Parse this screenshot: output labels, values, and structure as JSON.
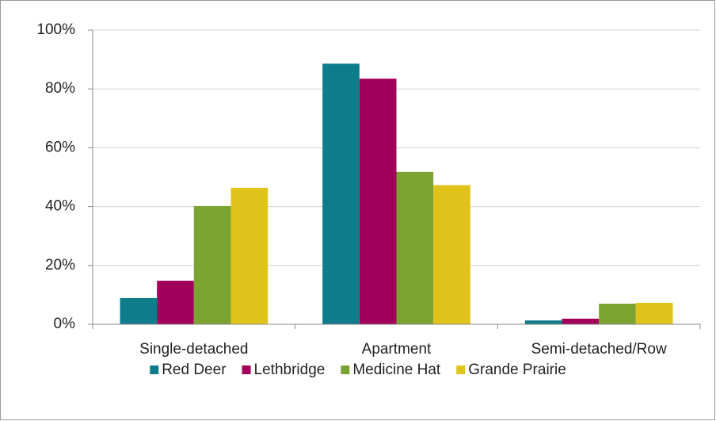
{
  "chart_data": {
    "type": "bar",
    "categories": [
      "Single-detached",
      "Apartment",
      "Semi-detached/Row"
    ],
    "series": [
      {
        "name": "Red Deer",
        "color": "#0e7c8b",
        "values": [
          8.9,
          88.6,
          1.3
        ]
      },
      {
        "name": "Lethbridge",
        "color": "#a0005a",
        "values": [
          14.8,
          83.5,
          1.9
        ]
      },
      {
        "name": "Medicine Hat",
        "color": "#7aa332",
        "values": [
          40.2,
          51.8,
          7.0
        ]
      },
      {
        "name": "Grande Prairie",
        "color": "#dfc31b",
        "values": [
          46.4,
          47.3,
          7.3
        ]
      }
    ],
    "ylim": [
      0,
      100
    ],
    "yticks": [
      {
        "value": 0,
        "label": "0%"
      },
      {
        "value": 20,
        "label": "20%"
      },
      {
        "value": 40,
        "label": "40%"
      },
      {
        "value": 60,
        "label": "60%"
      },
      {
        "value": 80,
        "label": "80%"
      },
      {
        "value": 100,
        "label": "100%"
      }
    ],
    "grid": true,
    "legend": "bottom"
  }
}
